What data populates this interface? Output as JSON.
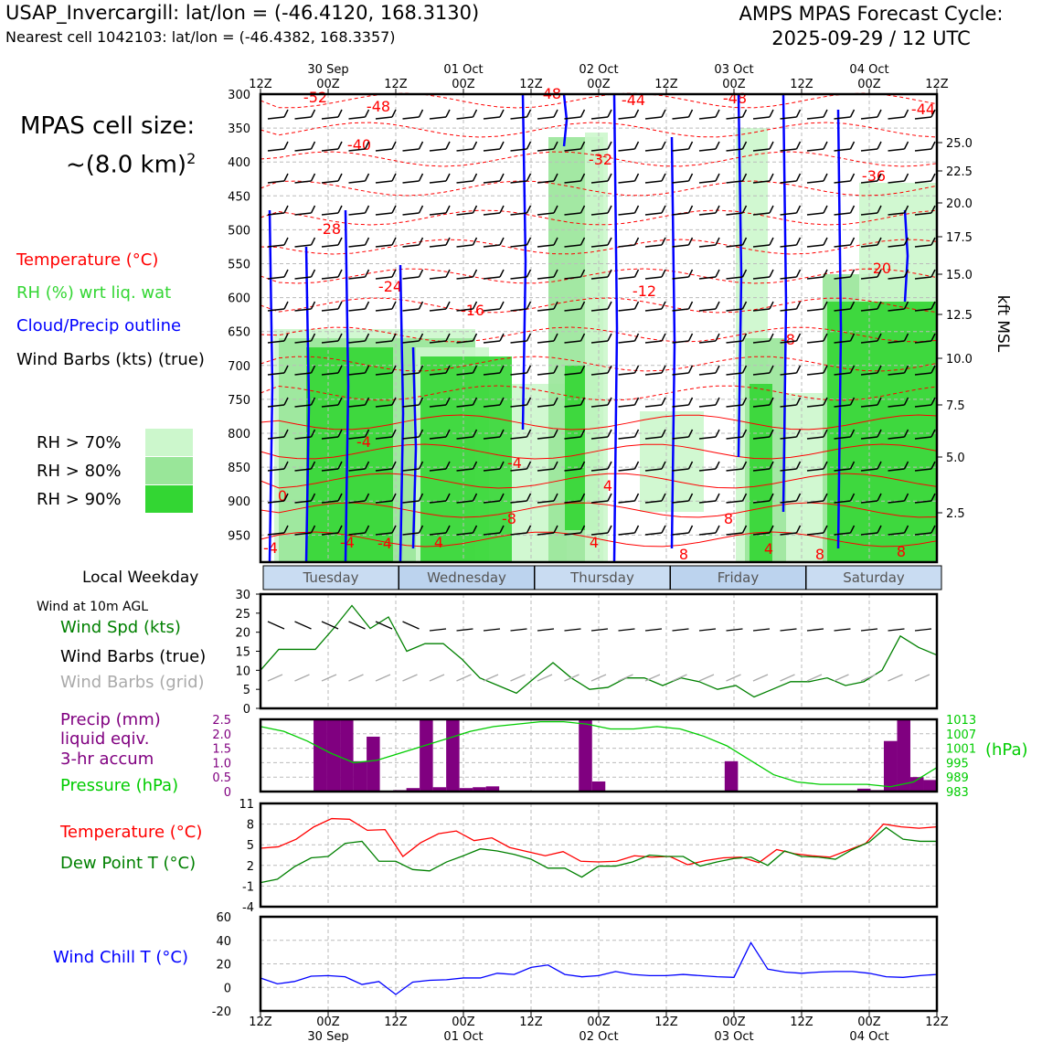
{
  "header": {
    "station": "USAP_Invercargill: lat/lon = (-46.4120, 168.3130)",
    "nearest": "Nearest cell 1042103: lat/lon = (-46.4382, 168.3357)",
    "cycle_line1": "AMPS MPAS Forecast Cycle:",
    "cycle_line2": "2025-09-29 / 12 UTC"
  },
  "cell_size": {
    "line1": "MPAS cell size:",
    "line2": "~(8.0 km)",
    "sup": "2"
  },
  "legend_main": {
    "temperature": "Temperature (°C)",
    "rh": "RH (%) wrt liq. wat",
    "cloud": "Cloud/Precip outline",
    "barbs": "Wind Barbs (kts) (true)"
  },
  "rh_legend": [
    {
      "label": "RH > 70%",
      "color": "#ccf7cc"
    },
    {
      "label": "RH > 80%",
      "color": "#99e699"
    },
    {
      "label": "RH > 90%",
      "color": "#33d633"
    }
  ],
  "left_labels": {
    "weekday": "Local Weekday",
    "wind10m": "Wind at 10m AGL",
    "windspd": "Wind Spd (kts)",
    "barbs_true": "Wind Barbs (true)",
    "barbs_grid": "Wind Barbs (grid)",
    "precip1": "Precip (mm)",
    "precip2": "liquid eqiv.",
    "precip3": "3-hr accum",
    "pressure": "Pressure (hPa)",
    "temp": "Temperature (°C)",
    "dew": "Dew Point T (°C)",
    "windchill": "Wind Chill T (°C)"
  },
  "colors": {
    "temp": "#ff0000",
    "rh": "#33d633",
    "cloud": "#0000ff",
    "precip": "#800080",
    "pressure": "#00cc00",
    "windspd": "#008000",
    "grid_barbs": "#aaaaaa",
    "windchill": "#0000ff"
  },
  "time_axis": {
    "ticks": [
      "12Z",
      "00Z",
      "12Z",
      "00Z",
      "12Z",
      "00Z",
      "12Z",
      "00Z",
      "12Z",
      "00Z",
      "12Z"
    ],
    "dates": [
      {
        "label": "30 Sep",
        "at": 1
      },
      {
        "label": "01 Oct",
        "at": 3
      },
      {
        "label": "02 Oct",
        "at": 5
      },
      {
        "label": "03 Oct",
        "at": 7
      },
      {
        "label": "04 Oct",
        "at": 9
      }
    ]
  },
  "weekdays": [
    "Tuesday",
    "Wednesday",
    "Thursday",
    "Friday",
    "Saturday"
  ],
  "chart_data": [
    {
      "type": "heatmap",
      "title": "Time-height cross section",
      "ylabel_right": "kft MSL",
      "pressure_ticks": [
        "300",
        "350",
        "400",
        "450",
        "500",
        "550",
        "600",
        "650",
        "700",
        "750",
        "800",
        "850",
        "900",
        "950"
      ],
      "kft_ticks": [
        "25.0",
        "22.5",
        "20.0",
        "17.5",
        "15.0",
        "12.5",
        "10.0",
        "7.5",
        "5.0",
        "2.5"
      ],
      "temperature_labels": [
        "-52",
        "-48",
        "-48",
        "-44",
        "-48",
        "-44",
        "-40",
        "-32",
        "-36",
        "-28",
        "-24",
        "-20",
        "-16",
        "-12",
        "-8",
        "-4",
        "-4",
        "0",
        "4",
        "-8",
        "-4",
        "4",
        "-4",
        "4",
        "8",
        "8",
        "8",
        "4",
        "-4",
        "8"
      ]
    },
    {
      "type": "line",
      "title": "Wind at 10m AGL",
      "ylim": [
        0,
        30
      ],
      "yticks": [
        "0",
        "5",
        "10",
        "15",
        "20",
        "25",
        "30"
      ],
      "series": [
        {
          "name": "Wind Spd (kts)",
          "values": [
            10,
            15.5,
            15.5,
            15.5,
            21,
            27,
            21,
            24,
            15,
            17,
            17,
            13,
            8,
            6,
            4,
            8,
            12,
            8,
            5,
            5.5,
            8,
            8,
            6,
            8,
            7,
            5,
            6,
            3,
            5,
            7,
            7,
            8,
            6,
            7,
            10,
            19,
            16,
            14
          ]
        }
      ]
    },
    {
      "type": "bar",
      "title": "Precip (mm) / Pressure (hPa)",
      "ylim": [
        0,
        2.5
      ],
      "yticks": [
        "0",
        "0.5",
        "1.0",
        "1.5",
        "2.0",
        "2.5"
      ],
      "pressure_ticks": [
        "1013",
        "1007",
        "1001",
        "995",
        "989",
        "983"
      ],
      "pressure_unit": "(hPa)",
      "precip": [
        0,
        0,
        0,
        0,
        2.5,
        2.5,
        2.5,
        1.05,
        1.9,
        0,
        0.05,
        0.12,
        2.5,
        0.15,
        2.5,
        0.12,
        0.15,
        0.18,
        0,
        0,
        0,
        0,
        0,
        0,
        2.5,
        0.35,
        0,
        0,
        0,
        0,
        0,
        0,
        0,
        0,
        0,
        1.05,
        0,
        0,
        0,
        0,
        0,
        0,
        0,
        0,
        0,
        0.1,
        0.05,
        1.75,
        2.5,
        0.5,
        0.4
      ],
      "pressure": [
        1010,
        1008,
        1004,
        999,
        995,
        996,
        999,
        1002,
        1005,
        1008,
        1010,
        1011,
        1012,
        1012,
        1011,
        1009,
        1009,
        1010,
        1009,
        1006,
        1002,
        996,
        990,
        987,
        986,
        986,
        986,
        985,
        987,
        993
      ]
    },
    {
      "type": "line",
      "title": "Temperature / Dew Point",
      "ylim": [
        -4,
        11
      ],
      "yticks": [
        "-4",
        "-1",
        "2",
        "5",
        "8",
        "11"
      ],
      "series": [
        {
          "name": "Temperature (°C)",
          "values": [
            4.5,
            4.7,
            5.8,
            7.6,
            8.8,
            8.7,
            7.1,
            7.2,
            3.3,
            5.3,
            6.6,
            7,
            5.6,
            6,
            4.6,
            4,
            3.4,
            4,
            2.6,
            2.5,
            2.6,
            3.4,
            3.2,
            3.3,
            2.1,
            2.7,
            3.1,
            3.2,
            2.4,
            4.3,
            3.7,
            3.4,
            3.2,
            4.2,
            5.2,
            8,
            7.6,
            7.4,
            7.6
          ]
        },
        {
          "name": "Dew Point T (°C)",
          "values": [
            -0.5,
            0,
            1.8,
            3.1,
            3.3,
            5.2,
            5.5,
            2.6,
            2.6,
            1.4,
            1.2,
            2.5,
            3.4,
            4.4,
            4.1,
            3.6,
            2.9,
            1.6,
            1.6,
            0.3,
            1.9,
            1.9,
            2.5,
            3.5,
            3.3,
            3.3,
            1.9,
            2.5,
            3,
            3.2,
            2,
            4.1,
            3.3,
            3.2,
            2.9,
            4.3,
            5.4,
            7.5,
            5.8,
            5.5,
            5.5
          ]
        }
      ]
    },
    {
      "type": "line",
      "title": "Wind Chill T (°C)",
      "ylim": [
        -20,
        60
      ],
      "yticks": [
        "-20",
        "0",
        "20",
        "40",
        "60"
      ],
      "series": [
        {
          "name": "Wind Chill T (°C)",
          "values": [
            8,
            3,
            5,
            9.5,
            10,
            9,
            2.5,
            5,
            -6,
            4.5,
            6,
            6.5,
            8,
            8,
            12,
            11,
            17,
            19,
            11,
            9,
            10,
            13.5,
            11,
            10,
            10,
            11,
            10,
            9,
            8.5,
            38,
            15.5,
            13,
            12,
            13,
            13.5,
            13.5,
            12,
            9,
            8.5,
            10,
            11
          ]
        }
      ]
    }
  ]
}
